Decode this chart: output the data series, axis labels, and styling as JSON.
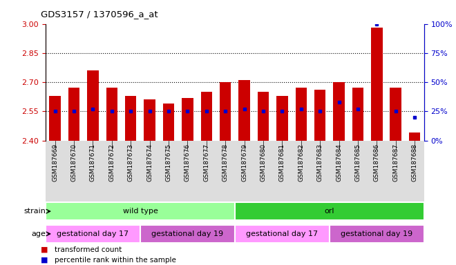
{
  "title": "GDS3157 / 1370596_a_at",
  "samples": [
    "GSM187669",
    "GSM187670",
    "GSM187671",
    "GSM187672",
    "GSM187673",
    "GSM187674",
    "GSM187675",
    "GSM187676",
    "GSM187677",
    "GSM187678",
    "GSM187679",
    "GSM187680",
    "GSM187681",
    "GSM187682",
    "GSM187683",
    "GSM187684",
    "GSM187685",
    "GSM187686",
    "GSM187687",
    "GSM187688"
  ],
  "bar_values": [
    2.63,
    2.67,
    2.76,
    2.67,
    2.63,
    2.61,
    2.59,
    2.62,
    2.65,
    2.7,
    2.71,
    2.65,
    2.63,
    2.67,
    2.66,
    2.7,
    2.67,
    2.98,
    2.67,
    2.44
  ],
  "percentile_values": [
    25,
    25,
    27,
    25,
    25,
    25,
    25,
    25,
    25,
    25,
    27,
    25,
    25,
    27,
    25,
    33,
    27,
    100,
    25,
    20
  ],
  "ylim_left": [
    2.4,
    3.0
  ],
  "ylim_right": [
    0,
    100
  ],
  "yticks_left": [
    2.4,
    2.55,
    2.7,
    2.85,
    3.0
  ],
  "yticks_right": [
    0,
    25,
    50,
    75,
    100
  ],
  "hlines": [
    2.55,
    2.7,
    2.85
  ],
  "bar_color": "#cc0000",
  "marker_color": "#0000cc",
  "bar_width": 0.6,
  "strain_groups": [
    {
      "label": "wild type",
      "start": 0,
      "end": 10,
      "color": "#99ff99"
    },
    {
      "label": "orl",
      "start": 10,
      "end": 20,
      "color": "#33cc33"
    }
  ],
  "age_groups": [
    {
      "label": "gestational day 17",
      "start": 0,
      "end": 5,
      "color": "#ff99ff"
    },
    {
      "label": "gestational day 19",
      "start": 5,
      "end": 10,
      "color": "#cc66cc"
    },
    {
      "label": "gestational day 17",
      "start": 10,
      "end": 15,
      "color": "#ff99ff"
    },
    {
      "label": "gestational day 19",
      "start": 15,
      "end": 20,
      "color": "#cc66cc"
    }
  ],
  "legend_items": [
    {
      "label": "transformed count",
      "color": "#cc0000"
    },
    {
      "label": "percentile rank within the sample",
      "color": "#0000cc"
    }
  ],
  "background_color": "#ffffff",
  "plot_bg_color": "#ffffff",
  "tick_color_left": "#cc0000",
  "tick_color_right": "#0000cc",
  "tick_bg_color": "#dddddd"
}
